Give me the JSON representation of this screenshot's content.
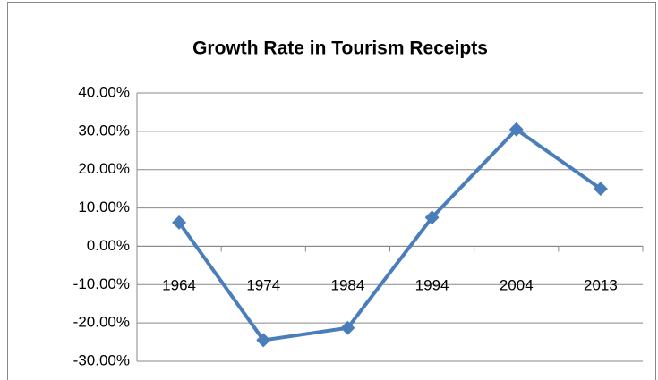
{
  "chart_data": {
    "type": "line",
    "title": "Growth Rate in Tourism Receipts",
    "categories": [
      "1964",
      "1974",
      "1984",
      "1994",
      "2004",
      "2013"
    ],
    "values": [
      6.2,
      -24.5,
      -21.3,
      7.5,
      30.5,
      15.0
    ],
    "color": "#4a7ebb",
    "ylim": [
      -30,
      40
    ],
    "yticks": [
      {
        "value": -30,
        "label": "-30.00%"
      },
      {
        "value": -20,
        "label": "-20.00%"
      },
      {
        "value": -10,
        "label": "-10.00%"
      },
      {
        "value": 0,
        "label": "0.00%"
      },
      {
        "value": 10,
        "label": "10.00%"
      },
      {
        "value": 20,
        "label": "20.00%"
      },
      {
        "value": 30,
        "label": "30.00%"
      },
      {
        "value": 40,
        "label": "40.00%"
      }
    ],
    "grid": true
  }
}
